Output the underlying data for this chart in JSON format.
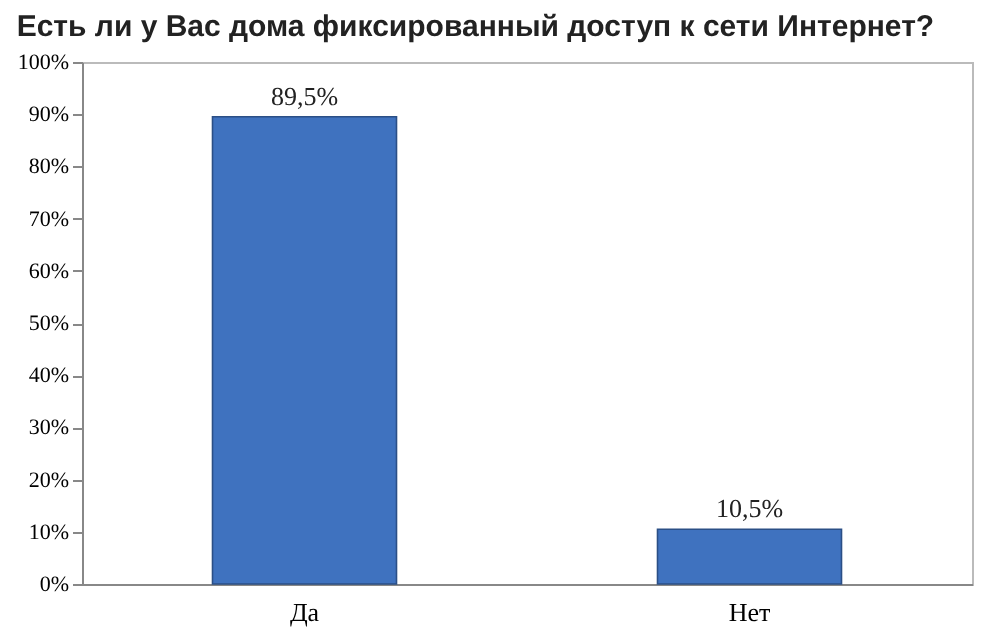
{
  "chart_data": {
    "type": "bar",
    "title": "Есть ли у Вас дома фиксированный доступ к сети Интернет?",
    "categories": [
      "Да",
      "Нет"
    ],
    "values": [
      89.5,
      10.5
    ],
    "value_labels": [
      "89,5%",
      "10,5%"
    ],
    "color": "#3f72bf",
    "ylim": [
      0,
      100
    ],
    "yticks": [
      {
        "value": 0,
        "label": "0%"
      },
      {
        "value": 10,
        "label": "10%"
      },
      {
        "value": 20,
        "label": "20%"
      },
      {
        "value": 30,
        "label": "30%"
      },
      {
        "value": 40,
        "label": "40%"
      },
      {
        "value": 50,
        "label": "50%"
      },
      {
        "value": 60,
        "label": "60%"
      },
      {
        "value": 70,
        "label": "70%"
      },
      {
        "value": 80,
        "label": "80%"
      },
      {
        "value": 90,
        "label": "90%"
      },
      {
        "value": 100,
        "label": "100%"
      }
    ],
    "grid": false
  }
}
